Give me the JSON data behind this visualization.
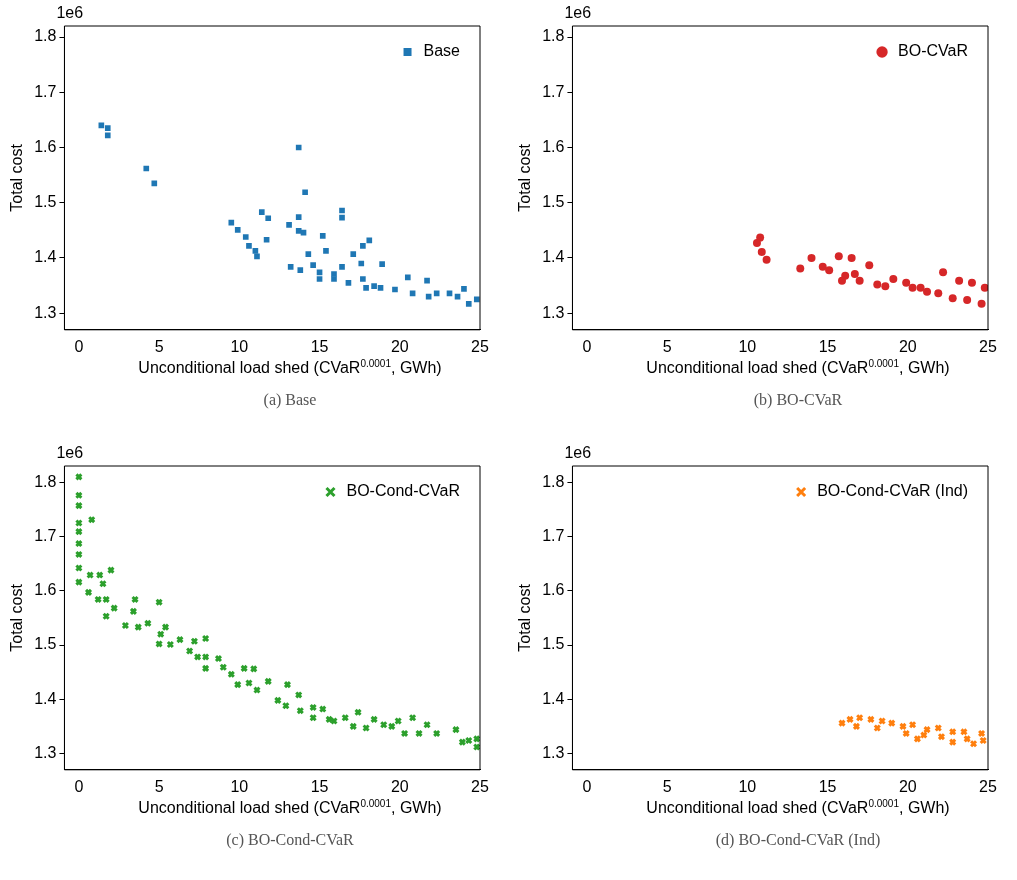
{
  "chart_data": [
    {
      "type": "scatter",
      "title": "(a) Base",
      "xlabel": "Unconditional load shed (CVaR$^{0.0001}$, GWh)",
      "ylabel": "Total cost",
      "annotations": [
        "1e6"
      ],
      "xlim": [
        -0.9,
        25
      ],
      "xticks": [
        0,
        5,
        10,
        15,
        20,
        25
      ],
      "ylim": [
        1.27,
        1.82
      ],
      "yticks": [
        1.3,
        1.4,
        1.5,
        1.6,
        1.7,
        1.8
      ],
      "grid": false,
      "legend": "top right",
      "marker": "square",
      "series": [
        {
          "name": "Base",
          "color": "#1f77b4",
          "x": [
            1.4,
            1.8,
            1.8,
            4.2,
            4.7,
            13.7,
            14.1,
            16.4,
            16.4,
            11.4,
            11.8,
            9.5,
            9.9,
            10.4,
            10.6,
            11.0,
            11.1,
            11.7,
            13.1,
            13.7,
            13.7,
            14.0,
            15.2,
            14.3,
            13.2,
            13.8,
            14.6,
            15.0,
            15.4,
            15.0,
            15.9,
            16.4,
            17.1,
            17.6,
            17.7,
            18.1,
            18.9,
            16.8,
            17.7,
            17.9,
            18.8,
            19.7,
            20.5,
            20.8,
            21.7,
            21.8,
            22.3,
            23.1,
            23.6,
            24.0,
            24.3,
            24.8,
            15.9,
            18.4
          ],
          "values": [
            1.64,
            1.635,
            1.622,
            1.562,
            1.535,
            1.6,
            1.519,
            1.486,
            1.473,
            1.483,
            1.472,
            1.464,
            1.451,
            1.438,
            1.422,
            1.413,
            1.403,
            1.433,
            1.46,
            1.474,
            1.449,
            1.446,
            1.44,
            1.407,
            1.384,
            1.378,
            1.387,
            1.374,
            1.413,
            1.362,
            1.362,
            1.384,
            1.407,
            1.39,
            1.422,
            1.432,
            1.389,
            1.355,
            1.362,
            1.346,
            1.346,
            1.343,
            1.365,
            1.336,
            1.359,
            1.33,
            1.336,
            1.336,
            1.33,
            1.344,
            1.317,
            1.325,
            1.371,
            1.349
          ]
        }
      ]
    },
    {
      "type": "scatter",
      "title": "(b) BO-CVaR",
      "xlabel": "Unconditional load shed (CVaR$^{0.0001}$, GWh)",
      "ylabel": "Total cost",
      "annotations": [
        "1e6"
      ],
      "xlim": [
        -0.9,
        25
      ],
      "xticks": [
        0,
        5,
        10,
        15,
        20,
        25
      ],
      "ylim": [
        1.27,
        1.82
      ],
      "yticks": [
        1.3,
        1.4,
        1.5,
        1.6,
        1.7,
        1.8
      ],
      "grid": false,
      "legend": "top right",
      "marker": "circle",
      "series": [
        {
          "name": "BO-CVaR",
          "color": "#d62728",
          "x": [
            10.8,
            10.6,
            10.9,
            11.2,
            13.3,
            14.0,
            14.7,
            15.7,
            16.5,
            16.1,
            17.6,
            17.0,
            18.1,
            19.1,
            19.9,
            20.8,
            22.2,
            23.2,
            24.0,
            24.8,
            21.9,
            22.8,
            23.7,
            24.6,
            21.2,
            15.1,
            15.9,
            16.7,
            18.6,
            20.3
          ],
          "values": [
            1.437,
            1.427,
            1.411,
            1.397,
            1.381,
            1.4,
            1.384,
            1.403,
            1.4,
            1.368,
            1.387,
            1.359,
            1.352,
            1.362,
            1.355,
            1.346,
            1.374,
            1.359,
            1.355,
            1.346,
            1.336,
            1.327,
            1.324,
            1.317,
            1.339,
            1.378,
            1.359,
            1.371,
            1.349,
            1.346
          ]
        }
      ]
    },
    {
      "type": "scatter",
      "title": "(c) BO-Cond-CVaR",
      "xlabel": "Unconditional load shed (CVaR$^{0.0001}$, GWh)",
      "ylabel": "Total cost",
      "annotations": [
        "1e6"
      ],
      "xlim": [
        -0.9,
        25
      ],
      "xticks": [
        0,
        5,
        10,
        15,
        20,
        25
      ],
      "ylim": [
        1.27,
        1.83
      ],
      "yticks": [
        1.3,
        1.4,
        1.5,
        1.6,
        1.7,
        1.8
      ],
      "grid": false,
      "legend": "top right",
      "marker": "cross",
      "series": [
        {
          "name": "BO-Cond-CVaR",
          "color": "#2ca02c",
          "x": [
            0,
            0,
            0,
            0,
            0,
            0,
            0,
            0.8,
            0,
            0,
            0.7,
            1.3,
            2.0,
            0.6,
            1.5,
            1.2,
            1.7,
            2.2,
            1.7,
            3.5,
            3.4,
            5.0,
            2.9,
            3.7,
            4.3,
            5.4,
            5.1,
            5.0,
            5.7,
            6.3,
            7.2,
            7.9,
            6.9,
            7.4,
            7.9,
            7.9,
            8.7,
            9.0,
            9.5,
            10.3,
            10.9,
            9.9,
            10.6,
            11.1,
            11.8,
            12.4,
            13.0,
            12.9,
            13.7,
            13.8,
            14.6,
            14.6,
            15.2,
            15.6,
            15.9,
            16.6,
            17.4,
            17.1,
            17.9,
            18.4,
            19.0,
            19.9,
            19.5,
            20.8,
            20.3,
            21.2,
            21.7,
            22.3,
            23.5,
            23.9,
            24.3,
            24.8,
            24.8
          ],
          "values": [
            1.81,
            1.776,
            1.757,
            1.725,
            1.709,
            1.687,
            1.667,
            1.731,
            1.642,
            1.616,
            1.629,
            1.629,
            1.638,
            1.597,
            1.613,
            1.584,
            1.584,
            1.568,
            1.553,
            1.584,
            1.562,
            1.579,
            1.536,
            1.533,
            1.54,
            1.533,
            1.52,
            1.502,
            1.501,
            1.51,
            1.507,
            1.512,
            1.489,
            1.478,
            1.457,
            1.478,
            1.475,
            1.459,
            1.446,
            1.457,
            1.456,
            1.427,
            1.43,
            1.417,
            1.433,
            1.398,
            1.427,
            1.388,
            1.408,
            1.379,
            1.385,
            1.366,
            1.382,
            1.363,
            1.36,
            1.366,
            1.376,
            1.35,
            1.347,
            1.363,
            1.353,
            1.36,
            1.35,
            1.366,
            1.337,
            1.337,
            1.353,
            1.337,
            1.344,
            1.321,
            1.324,
            1.327,
            1.312
          ]
        }
      ]
    },
    {
      "type": "scatter",
      "title": "(d) BO-Cond-CVaR (Ind)",
      "xlabel": "Unconditional load shed (CVaR$^{0.0001}$, GWh)",
      "ylabel": "Total cost",
      "annotations": [
        "1e6"
      ],
      "xlim": [
        -0.9,
        25
      ],
      "xticks": [
        0,
        5,
        10,
        15,
        20,
        25
      ],
      "ylim": [
        1.27,
        1.83
      ],
      "yticks": [
        1.3,
        1.4,
        1.5,
        1.6,
        1.7,
        1.8
      ],
      "grid": false,
      "legend": "top right",
      "marker": "cross",
      "series": [
        {
          "name": "BO-Cond-CVaR (Ind)",
          "color": "#ff7f0e",
          "x": [
            15.9,
            16.4,
            17.0,
            16.8,
            17.7,
            18.4,
            18.1,
            19.0,
            19.7,
            19.9,
            20.3,
            20.6,
            21.2,
            21.9,
            22.1,
            22.8,
            22.8,
            23.5,
            23.7,
            24.1,
            24.6,
            24.7,
            21.0
          ],
          "values": [
            1.356,
            1.363,
            1.366,
            1.35,
            1.363,
            1.36,
            1.347,
            1.356,
            1.35,
            1.337,
            1.353,
            1.327,
            1.344,
            1.347,
            1.331,
            1.34,
            1.321,
            1.34,
            1.327,
            1.318,
            1.337,
            1.324,
            1.334
          ]
        }
      ]
    }
  ]
}
